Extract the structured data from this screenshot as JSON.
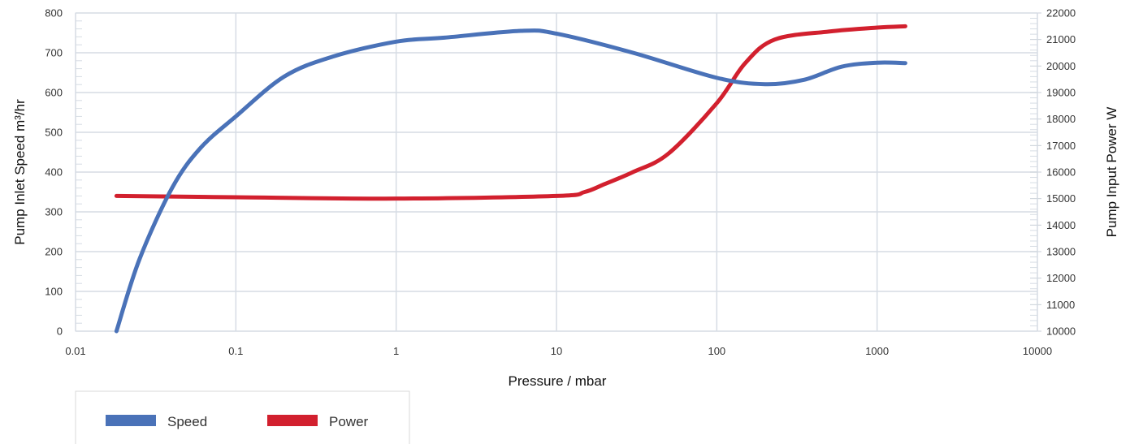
{
  "chart_data": {
    "type": "line",
    "x_scale": "log",
    "xlabel": "Pressure / mbar",
    "ylabel_left": "Pump Inlet Speed m³/hr",
    "ylabel_right": "Pump Input Power W",
    "xlim": [
      0.01,
      10000
    ],
    "ylim_left": [
      0,
      800
    ],
    "ylim_right": [
      10000,
      22000
    ],
    "x_ticks": [
      0.01,
      0.1,
      1,
      10,
      100,
      1000,
      10000
    ],
    "x_tick_labels": [
      "0.01",
      "0.1",
      "1",
      "10",
      "100",
      "1000",
      "10000"
    ],
    "y_left_ticks": [
      0,
      100,
      200,
      300,
      400,
      500,
      600,
      700,
      800
    ],
    "y_left_tick_labels": [
      "0",
      "100",
      "200",
      "300",
      "400",
      "500",
      "600",
      "700",
      "800"
    ],
    "y_right_ticks": [
      10000,
      11000,
      12000,
      13000,
      14000,
      15000,
      16000,
      17000,
      18000,
      19000,
      20000,
      21000,
      22000
    ],
    "y_right_tick_labels": [
      "10000",
      "11000",
      "12000",
      "13000",
      "14000",
      "15000",
      "16000",
      "17000",
      "18000",
      "19000",
      "20000",
      "21000",
      "22000"
    ],
    "grid": true,
    "legend_position": "bottom-left",
    "series": [
      {
        "name": "Speed",
        "axis": "left",
        "color": "#4a72b8",
        "x": [
          0.018,
          0.025,
          0.04,
          0.06,
          0.1,
          0.2,
          0.4,
          1,
          2,
          6,
          10,
          30,
          100,
          200,
          350,
          600,
          1000,
          1500
        ],
        "y": [
          0,
          180,
          360,
          460,
          540,
          640,
          690,
          728,
          738,
          755,
          748,
          700,
          637,
          621,
          632,
          665,
          675,
          674
        ]
      },
      {
        "name": "Power",
        "axis": "right",
        "color": "#d2202e",
        "x": [
          0.018,
          0.1,
          1,
          10,
          15,
          20,
          30,
          50,
          100,
          150,
          230,
          500,
          1000,
          1500
        ],
        "y": [
          15100,
          15050,
          15000,
          15100,
          15250,
          15550,
          16000,
          16700,
          18600,
          20100,
          21000,
          21300,
          21450,
          21500
        ]
      }
    ]
  }
}
